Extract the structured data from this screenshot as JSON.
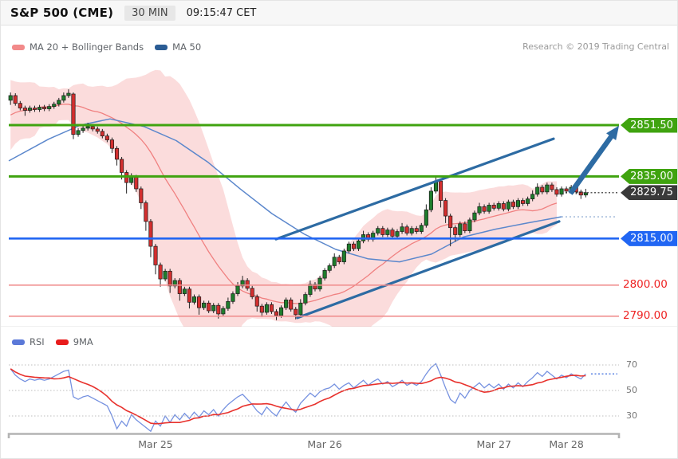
{
  "header": {
    "title": "S&P 500 (CME)",
    "interval": "30 MIN",
    "time": "09:15:47 CET"
  },
  "research": "Research © 2019 Trading Central",
  "legend_main": [
    {
      "label": "MA 20 + Bollinger Bands",
      "color": "#f28a8a"
    },
    {
      "label": "MA 50",
      "color": "#2a5c94"
    }
  ],
  "legend_rsi": [
    {
      "label": "RSI",
      "color": "#5b79d8"
    },
    {
      "label": "9MA",
      "color": "#e81c1c"
    }
  ],
  "colors": {
    "up": "#1e7d2c",
    "down": "#d32f2f",
    "outline": "#1a1a1a",
    "band_fill": "rgba(244,154,154,0.35)",
    "ma20": "#f08080",
    "ma50": "#5b87cc",
    "ma50_dotted": "#9ab4d6",
    "level_green": "#3fa30f",
    "level_blue": "#2166f3",
    "level_red_line": "#f09090",
    "level_red_text": "#ee2222",
    "tag_dark": "#3a3a3a",
    "channel": "#2d6ba3",
    "rsi": "#7591e0",
    "rsi_ma": "#e8312c",
    "rsi_dotted": "#4d79e0",
    "grid_dotted": "#bdbdbd",
    "axis_bar": "#b3b3b3"
  },
  "chart_data": [
    {
      "type": "candlestick",
      "title": "S&P 500 (CME) 30-minute chart with MA 20 + Bollinger Bands and MA 50",
      "ylim": [
        2786,
        2870
      ],
      "levels": [
        {
          "price": 2851.5,
          "label": "2851.50",
          "style": "resistance-green"
        },
        {
          "price": 2835.0,
          "label": "2835.00",
          "style": "resistance-green"
        },
        {
          "price": 2829.75,
          "label": "2829.75",
          "style": "last-price-dark"
        },
        {
          "price": 2815.0,
          "label": "2815.00",
          "style": "support-blue"
        },
        {
          "price": 2800.0,
          "label": "2800.00",
          "style": "support-red-text"
        },
        {
          "price": 2790.0,
          "label": "2790.00",
          "style": "support-red-text"
        }
      ],
      "x_dates": [
        {
          "label": "Mar 25",
          "index": 30
        },
        {
          "label": "Mar 26",
          "index": 65
        },
        {
          "label": "Mar 27",
          "index": 100
        },
        {
          "label": "Mar 28",
          "index": 115
        }
      ],
      "ma50_waypoints": [
        [
          10,
          2840
        ],
        [
          60,
          2847
        ],
        [
          100,
          2851.5
        ],
        [
          137,
          2853.5
        ],
        [
          180,
          2851
        ],
        [
          220,
          2846.5
        ],
        [
          260,
          2839.5
        ],
        [
          300,
          2831
        ],
        [
          340,
          2823
        ],
        [
          380,
          2816.5
        ],
        [
          420,
          2811.5
        ],
        [
          460,
          2808.5
        ],
        [
          500,
          2807.5
        ],
        [
          540,
          2810
        ],
        [
          580,
          2815.5
        ],
        [
          620,
          2818
        ],
        [
          660,
          2820
        ],
        [
          703,
          2822
        ]
      ],
      "ma50_projection": 2822,
      "channel": {
        "upper": [
          [
            345,
            2814.8
          ],
          [
            693,
            2847.1
          ]
        ],
        "lower": [
          [
            372,
            2789.5
          ],
          [
            700,
            2820.5
          ]
        ]
      },
      "arrow": {
        "from": [
          714,
          2829.5
        ],
        "to": [
          775,
          2851.3
        ]
      },
      "pre_closes": [
        2849,
        2843,
        2847,
        2852,
        2856,
        2850,
        2845,
        2853,
        2859,
        2855,
        2849,
        2857,
        2862,
        2858,
        2852,
        2859,
        2864,
        2860,
        2855,
        2858
      ],
      "candles": [
        [
          2859.5,
          2862,
          2858,
          2861
        ],
        [
          2861,
          2861.75,
          2857.75,
          2858.5
        ],
        [
          2858.5,
          2859.25,
          2856.25,
          2857
        ],
        [
          2857,
          2857.75,
          2854.5,
          2856.25
        ],
        [
          2856.25,
          2857.75,
          2855.5,
          2857
        ],
        [
          2857,
          2857.75,
          2855.75,
          2856.5
        ],
        [
          2856.5,
          2858,
          2855.75,
          2857.25
        ],
        [
          2857.25,
          2858,
          2856,
          2856.75
        ],
        [
          2856.75,
          2858.25,
          2856,
          2857.5
        ],
        [
          2857.5,
          2859,
          2856.75,
          2858.25
        ],
        [
          2858.25,
          2860.25,
          2857.5,
          2859.5
        ],
        [
          2859.5,
          2862,
          2858.75,
          2861
        ],
        [
          2861,
          2863,
          2860.25,
          2861.75
        ],
        [
          2861.5,
          2862,
          2847,
          2848.5
        ],
        [
          2848.5,
          2850.5,
          2847.75,
          2849.75
        ],
        [
          2849.75,
          2851.25,
          2849,
          2850.5
        ],
        [
          2850.5,
          2852.25,
          2849.75,
          2851
        ],
        [
          2851,
          2851.75,
          2849.5,
          2850.25
        ],
        [
          2850.25,
          2851,
          2848.75,
          2849.5
        ],
        [
          2849.5,
          2850.25,
          2847.25,
          2848
        ],
        [
          2848,
          2848.75,
          2846,
          2846.75
        ],
        [
          2846.75,
          2847.5,
          2842.5,
          2844
        ],
        [
          2844,
          2844.75,
          2838.5,
          2840.5
        ],
        [
          2840.5,
          2841.25,
          2834,
          2836.25
        ],
        [
          2836.25,
          2837,
          2829.5,
          2833
        ],
        [
          2833,
          2836,
          2832.25,
          2834.75
        ],
        [
          2834.75,
          2835.5,
          2830,
          2831
        ],
        [
          2831,
          2831.75,
          2824.5,
          2826.5
        ],
        [
          2826.5,
          2827.25,
          2817.5,
          2820.5
        ],
        [
          2820.5,
          2821.25,
          2809,
          2812.5
        ],
        [
          2812.5,
          2813.25,
          2803.5,
          2806.5
        ],
        [
          2806.5,
          2807.25,
          2799.5,
          2802
        ],
        [
          2802,
          2805.25,
          2801.25,
          2804.5
        ],
        [
          2804.5,
          2805.25,
          2797.5,
          2799.75
        ],
        [
          2799.75,
          2802.25,
          2799,
          2801.5
        ],
        [
          2801.5,
          2802.25,
          2795,
          2797.25
        ],
        [
          2797.25,
          2799.5,
          2796.5,
          2798.75
        ],
        [
          2798.75,
          2799.5,
          2792.5,
          2794.5
        ],
        [
          2794.5,
          2797,
          2793.75,
          2796.25
        ],
        [
          2796.25,
          2797,
          2790.5,
          2792.75
        ],
        [
          2792.75,
          2795,
          2792,
          2794.25
        ],
        [
          2794.25,
          2795,
          2791,
          2791.75
        ],
        [
          2791.75,
          2794.25,
          2791,
          2793.5
        ],
        [
          2793.5,
          2794.25,
          2789.25,
          2790.75
        ],
        [
          2790.75,
          2793.25,
          2790,
          2792.5
        ],
        [
          2792.5,
          2796,
          2791.75,
          2794.75
        ],
        [
          2794.75,
          2798,
          2794,
          2797.25
        ],
        [
          2797.25,
          2801,
          2796.5,
          2799.75
        ],
        [
          2799.75,
          2803,
          2799,
          2801.5
        ],
        [
          2801.5,
          2802.25,
          2798.25,
          2799
        ],
        [
          2799,
          2799.75,
          2795.5,
          2796.25
        ],
        [
          2796.25,
          2797,
          2791.5,
          2793.25
        ],
        [
          2793.25,
          2794,
          2789.75,
          2791.25
        ],
        [
          2791.25,
          2794.5,
          2790.5,
          2793.75
        ],
        [
          2793.75,
          2794.5,
          2790.75,
          2791.5
        ],
        [
          2791.5,
          2792.25,
          2788.75,
          2790.25
        ],
        [
          2790.25,
          2793.5,
          2789.5,
          2792.75
        ],
        [
          2792.75,
          2796,
          2792,
          2795.25
        ],
        [
          2795.25,
          2796,
          2791.5,
          2792.25
        ],
        [
          2792.25,
          2793,
          2789,
          2790.5
        ],
        [
          2790.5,
          2795.5,
          2789.75,
          2794.25
        ],
        [
          2794.25,
          2797.75,
          2793.5,
          2797
        ],
        [
          2797,
          2801.5,
          2796.25,
          2800.25
        ],
        [
          2800.25,
          2801,
          2798,
          2798.75
        ],
        [
          2798.75,
          2803,
          2798,
          2802.25
        ],
        [
          2802.25,
          2805.5,
          2801.5,
          2804.75
        ],
        [
          2804.75,
          2807,
          2804,
          2806.25
        ],
        [
          2806.25,
          2810.25,
          2805.5,
          2809
        ],
        [
          2809,
          2809.75,
          2806.75,
          2807.5
        ],
        [
          2807.5,
          2811.75,
          2806.75,
          2811
        ],
        [
          2811,
          2814,
          2810.25,
          2813.25
        ],
        [
          2813.25,
          2814,
          2811,
          2811.75
        ],
        [
          2811.75,
          2815,
          2811,
          2814.25
        ],
        [
          2814.25,
          2817.5,
          2813.5,
          2816.25
        ],
        [
          2816.25,
          2817,
          2814,
          2814.75
        ],
        [
          2814.75,
          2817.5,
          2814,
          2816.75
        ],
        [
          2816.75,
          2819,
          2816,
          2818.25
        ],
        [
          2818.25,
          2819,
          2815.5,
          2816.25
        ],
        [
          2816.25,
          2818.5,
          2815.5,
          2817.75
        ],
        [
          2817.75,
          2818.5,
          2815,
          2815.75
        ],
        [
          2815.75,
          2818,
          2815,
          2817.25
        ],
        [
          2817.25,
          2820,
          2816.5,
          2818.75
        ],
        [
          2818.75,
          2819.5,
          2816,
          2816.75
        ],
        [
          2816.75,
          2819,
          2816,
          2818.25
        ],
        [
          2818.25,
          2819,
          2816.5,
          2817.25
        ],
        [
          2817.25,
          2820,
          2816.5,
          2819.25
        ],
        [
          2819.25,
          2826,
          2818.5,
          2824.25
        ],
        [
          2824.25,
          2831.5,
          2823.5,
          2830.25
        ],
        [
          2830.25,
          2834.75,
          2829.5,
          2833.5
        ],
        [
          2833.5,
          2834.25,
          2825,
          2827.25
        ],
        [
          2827.25,
          2828,
          2820,
          2822.25
        ],
        [
          2822.25,
          2823,
          2812.5,
          2818.5
        ],
        [
          2818.5,
          2819.25,
          2814,
          2816.25
        ],
        [
          2816.25,
          2820.5,
          2815.5,
          2819.75
        ],
        [
          2819.75,
          2820.5,
          2816.75,
          2817.5
        ],
        [
          2817.5,
          2821.75,
          2816.75,
          2821
        ],
        [
          2821,
          2824,
          2820.25,
          2823.25
        ],
        [
          2823.25,
          2826.5,
          2822.5,
          2825.25
        ],
        [
          2825.25,
          2826,
          2823,
          2823.75
        ],
        [
          2823.75,
          2826.5,
          2823,
          2825.75
        ],
        [
          2825.75,
          2826.5,
          2824,
          2824.75
        ],
        [
          2824.75,
          2827,
          2824,
          2826.25
        ],
        [
          2826.25,
          2827,
          2823.75,
          2824.5
        ],
        [
          2824.5,
          2827.5,
          2823.75,
          2826.75
        ],
        [
          2826.75,
          2827.5,
          2824.5,
          2825.25
        ],
        [
          2825.25,
          2828,
          2824.5,
          2827.25
        ],
        [
          2827.25,
          2828,
          2825.5,
          2826.25
        ],
        [
          2826.25,
          2828.5,
          2825.5,
          2827.75
        ],
        [
          2827.75,
          2830.5,
          2827,
          2829.25
        ],
        [
          2829.25,
          2832.75,
          2828.5,
          2831.5
        ],
        [
          2831.5,
          2832.25,
          2829.25,
          2830
        ],
        [
          2830,
          2833,
          2829.25,
          2832.25
        ],
        [
          2832.25,
          2833,
          2830,
          2830.75
        ],
        [
          2830.75,
          2831.5,
          2828.5,
          2829.25
        ],
        [
          2829.25,
          2831.75,
          2828.5,
          2831
        ],
        [
          2831,
          2831.75,
          2829.5,
          2830.25
        ],
        [
          2830.25,
          2832.25,
          2829.5,
          2831.5
        ],
        [
          2831.5,
          2832.25,
          2829.25,
          2830
        ],
        [
          2830,
          2830.75,
          2827.75,
          2829
        ],
        [
          2829,
          2831,
          2828.25,
          2829.75
        ]
      ]
    },
    {
      "type": "line",
      "title": "RSI with 9MA",
      "ylim": [
        10,
        80
      ],
      "gridlines": [
        70,
        50,
        30
      ],
      "ma_period": 9,
      "projection": 63,
      "values": [
        67,
        62,
        59,
        57,
        59,
        58,
        59,
        58,
        59,
        61,
        63,
        65,
        66,
        45,
        43,
        45,
        46,
        44,
        42,
        40,
        38,
        30,
        20,
        26,
        22,
        31,
        27,
        24,
        21,
        18,
        26,
        22,
        30,
        25,
        31,
        27,
        32,
        28,
        33,
        29,
        34,
        31,
        35,
        30,
        35,
        39,
        42,
        45,
        47,
        43,
        39,
        34,
        31,
        37,
        33,
        30,
        36,
        41,
        36,
        33,
        40,
        44,
        48,
        45,
        49,
        51,
        52,
        55,
        51,
        54,
        56,
        52,
        55,
        58,
        54,
        57,
        59,
        55,
        57,
        53,
        55,
        58,
        54,
        56,
        54,
        57,
        63,
        68,
        71,
        62,
        52,
        43,
        40,
        48,
        44,
        50,
        53,
        56,
        52,
        55,
        52,
        55,
        51,
        55,
        52,
        56,
        53,
        57,
        60,
        64,
        61,
        65,
        62,
        59,
        62,
        60,
        63,
        61,
        59,
        63
      ]
    }
  ]
}
